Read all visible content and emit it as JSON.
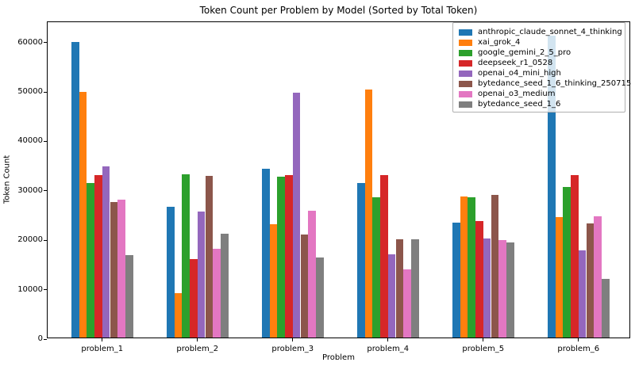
{
  "chart_data": {
    "type": "bar",
    "title": "Token Count per Problem by Model (Sorted by Total Token)",
    "xlabel": "Problem",
    "ylabel": "Token Count",
    "categories": [
      "problem_1",
      "problem_2",
      "problem_3",
      "problem_4",
      "problem_5",
      "problem_6"
    ],
    "series": [
      {
        "name": "anthropic_claude_sonnet_4_thinking",
        "color": "#1f77b4",
        "values": [
          59800,
          26400,
          34100,
          31300,
          23200,
          61000
        ]
      },
      {
        "name": "xai_grok_4",
        "color": "#ff7f0e",
        "values": [
          49700,
          8900,
          22900,
          50200,
          28600,
          24300
        ]
      },
      {
        "name": "google_gemini_2_5_pro",
        "color": "#2ca02c",
        "values": [
          31200,
          33100,
          32500,
          28400,
          28300,
          30500
        ]
      },
      {
        "name": "deepseek_r1_0528",
        "color": "#d62728",
        "values": [
          32800,
          15900,
          32900,
          32900,
          23500,
          32900
        ]
      },
      {
        "name": "openai_o4_mini_high",
        "color": "#9467bd",
        "values": [
          34700,
          25500,
          49500,
          16800,
          20100,
          17600
        ]
      },
      {
        "name": "bytedance_seed_1_6_thinking_250715",
        "color": "#8c564b",
        "values": [
          27400,
          32700,
          20900,
          19800,
          28900,
          23100
        ]
      },
      {
        "name": "openai_o3_medium",
        "color": "#e377c2",
        "values": [
          27900,
          18000,
          25600,
          13800,
          19700,
          24500
        ]
      },
      {
        "name": "bytedance_seed_1_6",
        "color": "#7f7f7f",
        "values": [
          16600,
          21000,
          16200,
          19900,
          19200,
          11900
        ]
      }
    ],
    "yticks": [
      0,
      10000,
      20000,
      30000,
      40000,
      50000,
      60000
    ],
    "ylim": [
      0,
      64120
    ],
    "grid": false,
    "legend_position": "upper right"
  }
}
